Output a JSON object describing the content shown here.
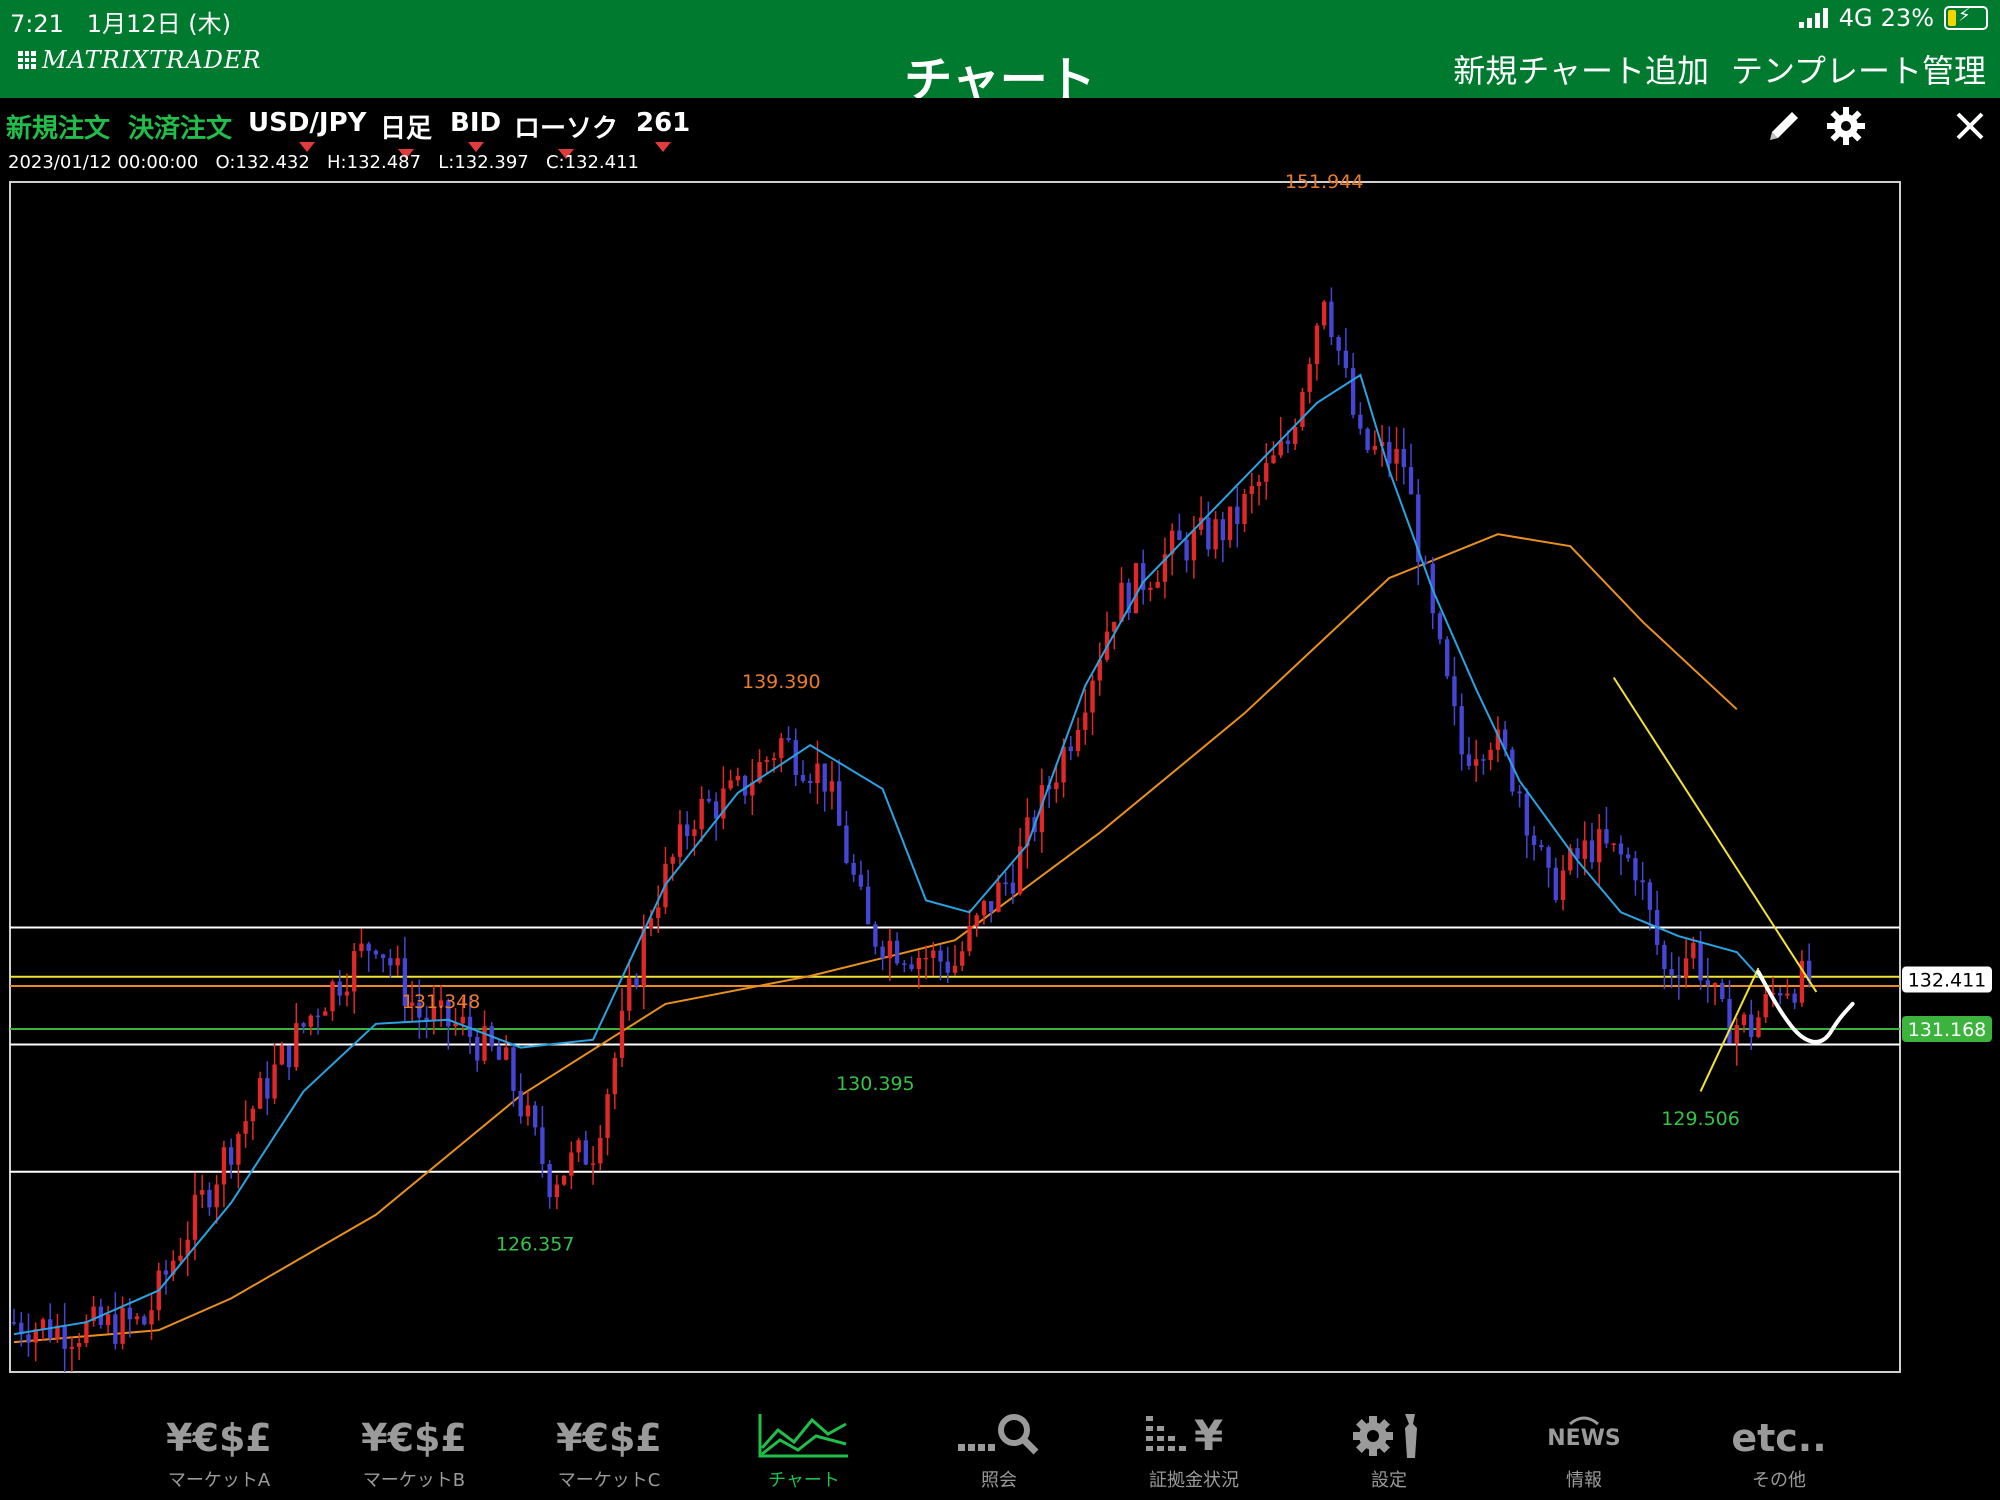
{
  "status_bar": {
    "time": "7:21",
    "date": "1月12日 (木)",
    "network": "4G",
    "battery": "23%",
    "battery_level": 0.23
  },
  "header": {
    "logo": "MATRIXTRADER",
    "title": "チャート",
    "actions": [
      "新規チャート追加",
      "テンプレート管理"
    ]
  },
  "toolbar": {
    "new_order": "新規注文",
    "close_order": "決済注文",
    "pair": "USD/JPY",
    "timeframe": "日足",
    "price_type": "BID",
    "chart_style": "ローソク",
    "count": "261"
  },
  "ohlc": {
    "date": "2023/01/12 00:00:00",
    "open": "O:132.432",
    "high": "H:132.487",
    "low": "L:132.397",
    "close": "C:132.411"
  },
  "chart_data": {
    "type": "line",
    "ylim": [
      122.6,
      152.4
    ],
    "x_count": 261,
    "annotations": [
      {
        "label": "151.944",
        "x": 181,
        "y": 151.944,
        "kind": "high"
      },
      {
        "label": "139.390",
        "x": 106,
        "y": 139.39,
        "kind": "high"
      },
      {
        "label": "131.348",
        "x": 59,
        "y": 131.348,
        "kind": "high"
      },
      {
        "label": "130.395",
        "x": 119,
        "y": 130.395,
        "kind": "low"
      },
      {
        "label": "126.357",
        "x": 72,
        "y": 126.357,
        "kind": "low"
      },
      {
        "label": "129.506",
        "x": 233,
        "y": 129.506,
        "kind": "low"
      }
    ],
    "price_tags": [
      {
        "label": "132.411",
        "value": 132.411,
        "color": "#ffffff"
      },
      {
        "label": "131.168",
        "value": 131.168,
        "color": "#3cb33c"
      }
    ],
    "hlines": [
      {
        "value": 133.72,
        "color": "#ffffff"
      },
      {
        "value": 132.48,
        "color": "#f2e233"
      },
      {
        "value": 132.25,
        "color": "#e88a1f"
      },
      {
        "value": 131.168,
        "color": "#3cb33c"
      },
      {
        "value": 130.78,
        "color": "#ffffff"
      },
      {
        "value": 127.58,
        "color": "#ffffff"
      }
    ],
    "price_keypoints": [
      [
        0,
        123.8
      ],
      [
        8,
        123.6
      ],
      [
        18,
        123.8
      ],
      [
        22,
        125.4
      ],
      [
        30,
        128.3
      ],
      [
        36,
        130.1
      ],
      [
        42,
        131.8
      ],
      [
        50,
        133.5
      ],
      [
        56,
        131.5
      ],
      [
        62,
        131.2
      ],
      [
        68,
        130.2
      ],
      [
        74,
        127.4
      ],
      [
        80,
        128.2
      ],
      [
        84,
        131.2
      ],
      [
        88,
        134.2
      ],
      [
        94,
        136.6
      ],
      [
        100,
        137.1
      ],
      [
        106,
        138.4
      ],
      [
        112,
        137.5
      ],
      [
        118,
        133.6
      ],
      [
        124,
        133.1
      ],
      [
        130,
        132.8
      ],
      [
        134,
        134.1
      ],
      [
        138,
        135.1
      ],
      [
        146,
        138.6
      ],
      [
        152,
        141.8
      ],
      [
        160,
        143.2
      ],
      [
        168,
        143.8
      ],
      [
        176,
        145.9
      ],
      [
        181,
        149.8
      ],
      [
        186,
        145.8
      ],
      [
        192,
        145.4
      ],
      [
        196,
        141.3
      ],
      [
        200,
        138.1
      ],
      [
        204,
        138.6
      ],
      [
        208,
        137.2
      ],
      [
        212,
        134.7
      ],
      [
        218,
        135.8
      ],
      [
        224,
        135.3
      ],
      [
        228,
        132.6
      ],
      [
        232,
        133.2
      ],
      [
        236,
        131.4
      ],
      [
        240,
        131.2
      ],
      [
        244,
        132.3
      ],
      [
        248,
        132.4
      ]
    ],
    "ma_short": [
      [
        0,
        123.5
      ],
      [
        10,
        123.8
      ],
      [
        20,
        124.6
      ],
      [
        30,
        126.8
      ],
      [
        40,
        129.6
      ],
      [
        50,
        131.3
      ],
      [
        60,
        131.4
      ],
      [
        70,
        130.7
      ],
      [
        80,
        130.9
      ],
      [
        90,
        134.8
      ],
      [
        100,
        137.1
      ],
      [
        110,
        138.3
      ],
      [
        120,
        137.2
      ],
      [
        126,
        134.4
      ],
      [
        132,
        134.1
      ],
      [
        140,
        135.8
      ],
      [
        148,
        139.8
      ],
      [
        156,
        142.4
      ],
      [
        164,
        143.9
      ],
      [
        172,
        145.4
      ],
      [
        180,
        146.9
      ],
      [
        186,
        147.6
      ],
      [
        190,
        145.2
      ],
      [
        196,
        142.2
      ],
      [
        202,
        139.7
      ],
      [
        208,
        137.4
      ],
      [
        216,
        135.4
      ],
      [
        222,
        134.1
      ],
      [
        230,
        133.5
      ],
      [
        238,
        133.1
      ],
      [
        242,
        132.3
      ]
    ],
    "ma_long": [
      [
        0,
        123.3
      ],
      [
        20,
        123.6
      ],
      [
        30,
        124.4
      ],
      [
        50,
        126.5
      ],
      [
        70,
        129.5
      ],
      [
        90,
        131.8
      ],
      [
        110,
        132.5
      ],
      [
        130,
        133.4
      ],
      [
        150,
        136.1
      ],
      [
        170,
        139.1
      ],
      [
        190,
        142.5
      ],
      [
        205,
        143.6
      ],
      [
        215,
        143.3
      ],
      [
        225,
        141.4
      ],
      [
        238,
        139.2
      ]
    ],
    "trend_lines": [
      {
        "from": [
          221,
          140.0
        ],
        "to": [
          249,
          132.1
        ],
        "color": "#f2e233"
      },
      {
        "from": [
          233,
          129.6
        ],
        "to": [
          241,
          132.7
        ],
        "color": "#f2e233"
      }
    ],
    "drawn_curve": [
      [
        241,
        132.6
      ],
      [
        244,
        131.6
      ],
      [
        247,
        130.9
      ],
      [
        250,
        130.8
      ],
      [
        252,
        131.4
      ],
      [
        254,
        131.8
      ]
    ]
  },
  "tabs": [
    {
      "label": "マーケットA",
      "glyph": "¥€$£"
    },
    {
      "label": "マーケットB",
      "glyph": "¥€$£"
    },
    {
      "label": "マーケットC",
      "glyph": "¥€$£"
    },
    {
      "label": "チャート",
      "glyph": "chart-icon"
    },
    {
      "label": "照会",
      "glyph": "search-icon"
    },
    {
      "label": "証拠金状況",
      "glyph": "margin-icon"
    },
    {
      "label": "設定",
      "glyph": "settings-icon"
    },
    {
      "label": "情報",
      "glyph": "NEWS"
    },
    {
      "label": "その他",
      "glyph": "etc.."
    }
  ]
}
